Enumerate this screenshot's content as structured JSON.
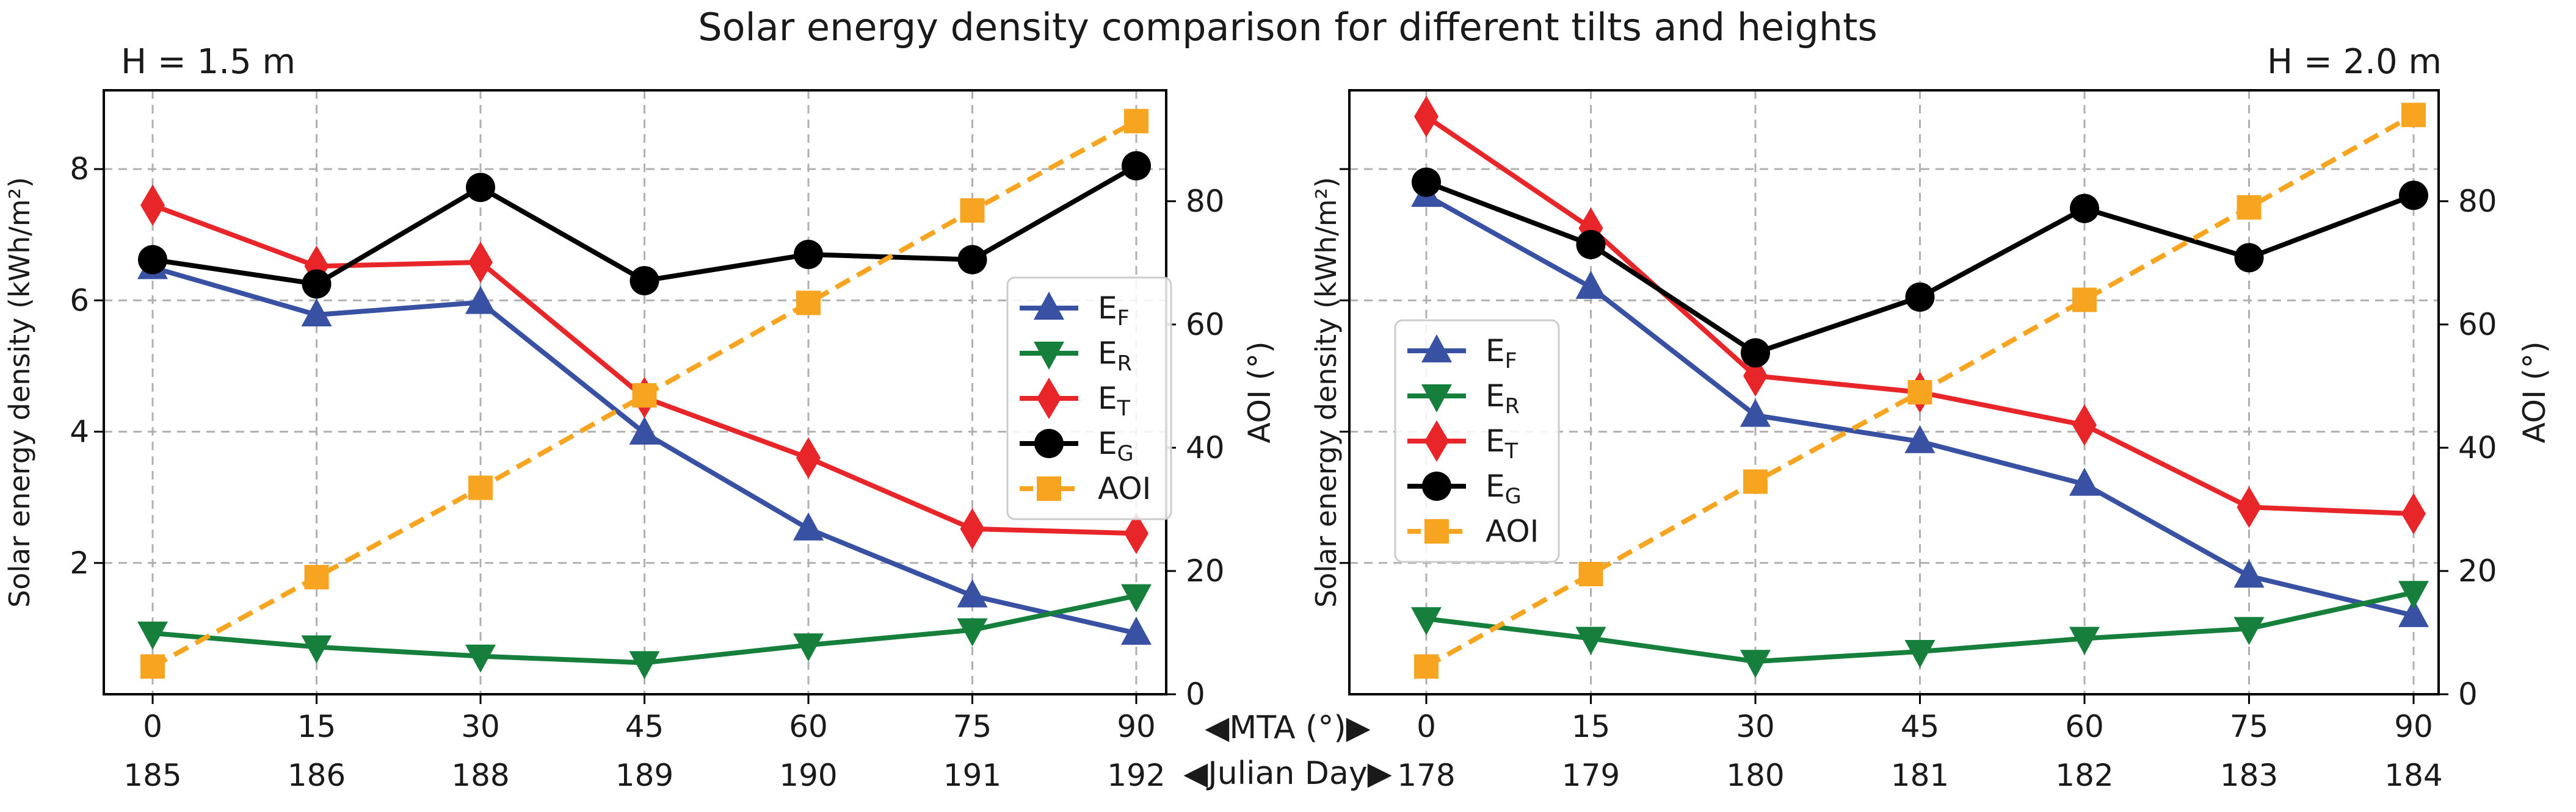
{
  "figure": {
    "title": "Solar energy density comparison for different tilts and heights",
    "mta_label": "◀MTA (°)▶",
    "julian_label": "◀Julian Day▶"
  },
  "colors": {
    "EF": "#3951a2",
    "ER": "#157f3b",
    "ET": "#e8262a",
    "EG": "#000000",
    "AOI": "#f7a520",
    "grid": "#b0b0b0"
  },
  "chart_data": [
    {
      "type": "line",
      "title": "H = 1.5 m",
      "x": [
        0,
        15,
        30,
        45,
        60,
        75,
        90
      ],
      "x_tick_labels": [
        "0",
        "15",
        "30",
        "45",
        "60",
        "75",
        "90"
      ],
      "julian_days": [
        "185",
        "186",
        "188",
        "189",
        "190",
        "191",
        "192"
      ],
      "xlabel": "MTA (°)",
      "ylabel": "Solar energy density (kWh/m²)",
      "ylim": [
        0,
        9.2
      ],
      "y_ticks": [
        2,
        4,
        6,
        8
      ],
      "ylabel_right": "AOI (°)",
      "ylim_right": [
        0,
        98
      ],
      "y_ticks_right": [
        0,
        20,
        40,
        60,
        80
      ],
      "grid": true,
      "legend": "center-right",
      "series": [
        {
          "key": "EF",
          "name": "E",
          "sub": "F",
          "marker": "triangle-up",
          "axis": "left",
          "values": [
            6.5,
            5.78,
            5.97,
            3.98,
            2.52,
            1.5,
            0.93
          ]
        },
        {
          "key": "ER",
          "name": "E",
          "sub": "R",
          "marker": "triangle-down",
          "axis": "left",
          "values": [
            0.93,
            0.72,
            0.58,
            0.48,
            0.75,
            0.98,
            1.5
          ]
        },
        {
          "key": "ET",
          "name": "E",
          "sub": "T",
          "marker": "diamond",
          "axis": "left",
          "values": [
            7.45,
            6.52,
            6.58,
            4.52,
            3.6,
            2.52,
            2.45
          ]
        },
        {
          "key": "EG",
          "name": "E",
          "sub": "G",
          "marker": "circle",
          "axis": "left",
          "values": [
            6.62,
            6.25,
            7.72,
            6.3,
            6.7,
            6.62,
            8.05
          ]
        },
        {
          "key": "AOI",
          "name": "AOI",
          "sub": "",
          "marker": "square",
          "axis": "right",
          "dashed": true,
          "values": [
            4.5,
            19,
            33.5,
            48.5,
            63.5,
            78.5,
            93
          ]
        }
      ]
    },
    {
      "type": "line",
      "title": "H = 2.0 m",
      "x": [
        0,
        15,
        30,
        45,
        60,
        75,
        90
      ],
      "x_tick_labels": [
        "0",
        "15",
        "30",
        "45",
        "60",
        "75",
        "90"
      ],
      "julian_days": [
        "178",
        "179",
        "180",
        "181",
        "182",
        "183",
        "184"
      ],
      "xlabel": "MTA (°)",
      "ylabel": "Solar energy density (kWh/m²)",
      "ylim": [
        0,
        9.2
      ],
      "y_ticks": [],
      "ylabel_right": "AOI (°)",
      "ylim_right": [
        0,
        98
      ],
      "y_ticks_right": [
        0,
        20,
        40,
        60,
        80
      ],
      "grid": true,
      "legend": "center-left",
      "series": [
        {
          "key": "EF",
          "name": "E",
          "sub": "F",
          "marker": "triangle-up",
          "axis": "left",
          "values": [
            7.6,
            6.2,
            4.25,
            3.85,
            3.2,
            1.8,
            1.2
          ]
        },
        {
          "key": "ER",
          "name": "E",
          "sub": "R",
          "marker": "triangle-down",
          "axis": "left",
          "values": [
            1.15,
            0.85,
            0.5,
            0.65,
            0.85,
            1.0,
            1.55
          ]
        },
        {
          "key": "ET",
          "name": "E",
          "sub": "T",
          "marker": "diamond",
          "axis": "left",
          "values": [
            8.8,
            7.1,
            4.85,
            4.6,
            4.1,
            2.85,
            2.75
          ]
        },
        {
          "key": "EG",
          "name": "E",
          "sub": "G",
          "marker": "circle",
          "axis": "left",
          "values": [
            7.8,
            6.85,
            5.2,
            6.05,
            7.4,
            6.65,
            7.6
          ]
        },
        {
          "key": "AOI",
          "name": "AOI",
          "sub": "",
          "marker": "square",
          "axis": "right",
          "dashed": true,
          "values": [
            4.5,
            19.5,
            34.5,
            49,
            64,
            79,
            94
          ]
        }
      ]
    }
  ]
}
